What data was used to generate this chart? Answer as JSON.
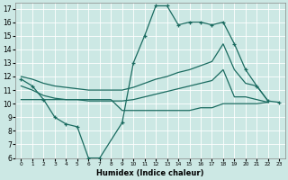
{
  "xlabel": "Humidex (Indice chaleur)",
  "background_color": "#cce8e4",
  "line_color": "#1a6b60",
  "xlim": [
    -0.5,
    23.5
  ],
  "ylim": [
    6,
    17.4
  ],
  "xticks": [
    0,
    1,
    2,
    3,
    4,
    5,
    6,
    7,
    8,
    9,
    10,
    11,
    12,
    13,
    14,
    15,
    16,
    17,
    18,
    19,
    20,
    21,
    22,
    23
  ],
  "yticks": [
    6,
    7,
    8,
    9,
    10,
    11,
    12,
    13,
    14,
    15,
    16,
    17
  ],
  "main_x": [
    0,
    1,
    2,
    3,
    4,
    5,
    6,
    7,
    9,
    10,
    11,
    12,
    13,
    14,
    15,
    16,
    17,
    18,
    19,
    20,
    21,
    22,
    23
  ],
  "main_y": [
    11.8,
    11.3,
    10.3,
    9.0,
    8.5,
    8.3,
    6.0,
    6.0,
    8.6,
    13.0,
    15.0,
    17.2,
    17.2,
    15.8,
    16.0,
    16.0,
    15.8,
    16.0,
    14.4,
    12.5,
    11.3,
    10.2,
    10.1
  ],
  "upper_x": [
    0,
    1,
    2,
    3,
    4,
    5,
    6,
    7,
    8,
    9,
    10,
    11,
    12,
    13,
    14,
    15,
    16,
    17,
    18,
    19,
    20,
    21,
    22
  ],
  "upper_y": [
    12.0,
    11.8,
    11.5,
    11.3,
    11.2,
    11.1,
    11.0,
    11.0,
    11.0,
    11.0,
    11.2,
    11.5,
    11.8,
    12.0,
    12.3,
    12.5,
    12.8,
    13.1,
    14.4,
    12.5,
    11.5,
    11.3,
    10.2
  ],
  "mid_x": [
    0,
    1,
    2,
    3,
    4,
    5,
    6,
    7,
    8,
    9,
    10,
    11,
    12,
    13,
    14,
    15,
    16,
    17,
    18,
    19,
    20,
    21,
    22
  ],
  "mid_y": [
    11.3,
    11.0,
    10.6,
    10.4,
    10.3,
    10.3,
    10.2,
    10.2,
    10.2,
    10.2,
    10.3,
    10.5,
    10.7,
    10.9,
    11.1,
    11.3,
    11.5,
    11.7,
    12.5,
    10.5,
    10.5,
    10.3,
    10.1
  ],
  "lower_x": [
    0,
    1,
    2,
    3,
    4,
    5,
    6,
    7,
    8,
    9,
    10,
    11,
    12,
    13,
    14,
    15,
    16,
    17,
    18,
    19,
    20,
    21,
    22
  ],
  "lower_y": [
    10.3,
    10.3,
    10.3,
    10.3,
    10.3,
    10.3,
    10.3,
    10.3,
    10.3,
    9.5,
    9.5,
    9.5,
    9.5,
    9.5,
    9.5,
    9.5,
    9.7,
    9.7,
    10.0,
    10.0,
    10.0,
    10.0,
    10.1
  ]
}
